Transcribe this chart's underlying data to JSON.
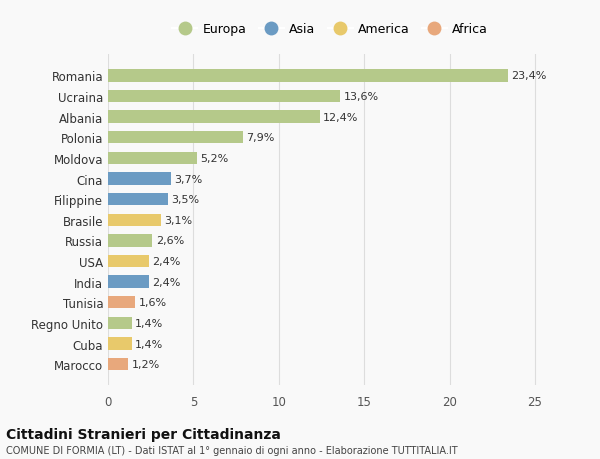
{
  "categories": [
    "Marocco",
    "Cuba",
    "Regno Unito",
    "Tunisia",
    "India",
    "USA",
    "Russia",
    "Brasile",
    "Filippine",
    "Cina",
    "Moldova",
    "Polonia",
    "Albania",
    "Ucraina",
    "Romania"
  ],
  "values": [
    1.2,
    1.4,
    1.4,
    1.6,
    2.4,
    2.4,
    2.6,
    3.1,
    3.5,
    3.7,
    5.2,
    7.9,
    12.4,
    13.6,
    23.4
  ],
  "labels": [
    "1,2%",
    "1,4%",
    "1,4%",
    "1,6%",
    "2,4%",
    "2,4%",
    "2,6%",
    "3,1%",
    "3,5%",
    "3,7%",
    "5,2%",
    "7,9%",
    "12,4%",
    "13,6%",
    "23,4%"
  ],
  "continents": [
    "Africa",
    "America",
    "Europa",
    "Africa",
    "Asia",
    "America",
    "Europa",
    "America",
    "Asia",
    "Asia",
    "Europa",
    "Europa",
    "Europa",
    "Europa",
    "Europa"
  ],
  "continent_colors": {
    "Europa": "#b5c98a",
    "Asia": "#6b9bc3",
    "America": "#e8c96b",
    "Africa": "#e8a87c"
  },
  "legend_order": [
    "Europa",
    "Asia",
    "America",
    "Africa"
  ],
  "title": "Cittadini Stranieri per Cittadinanza",
  "subtitle": "COMUNE DI FORMIA (LT) - Dati ISTAT al 1° gennaio di ogni anno - Elaborazione TUTTITALIA.IT",
  "xlim": [
    0,
    26
  ],
  "xticks": [
    0,
    5,
    10,
    15,
    20,
    25
  ],
  "background_color": "#f9f9f9",
  "bar_height": 0.6,
  "grid_color": "#dddddd"
}
